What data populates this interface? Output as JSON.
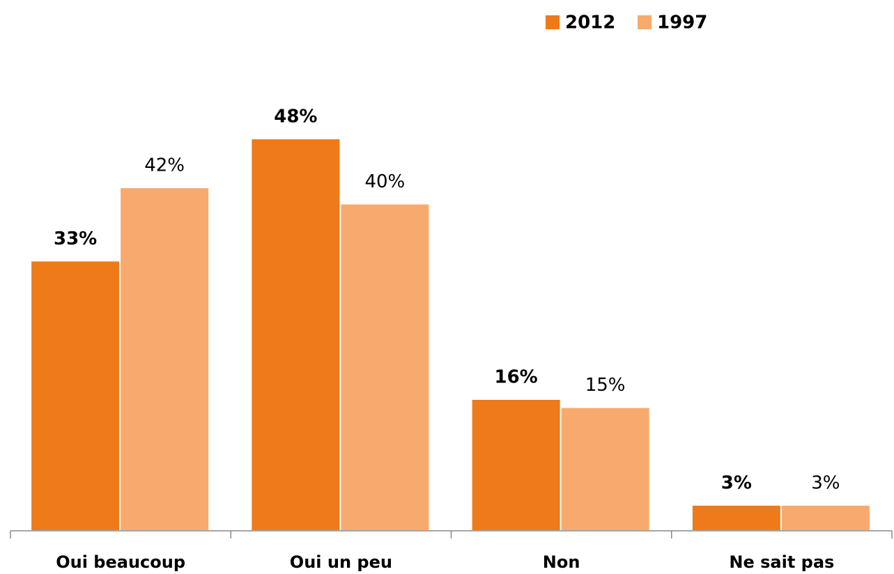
{
  "chart_data": {
    "type": "bar",
    "categories": [
      "Oui beaucoup",
      "Oui un peu",
      "Non",
      "Ne sait pas"
    ],
    "series": [
      {
        "name": "2012",
        "color": "#ee7a1a",
        "values": [
          33,
          48,
          16,
          3
        ],
        "value_labels": [
          "33%",
          "48%",
          "16%",
          "3%"
        ]
      },
      {
        "name": "1997",
        "color": "#f8aa6e",
        "values": [
          42,
          40,
          15,
          3
        ],
        "value_labels": [
          "42%",
          "40%",
          "15%",
          "3%"
        ]
      }
    ],
    "legend": "top-right"
  }
}
